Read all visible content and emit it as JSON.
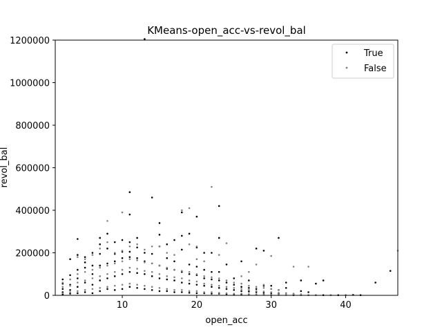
{
  "chart_data": {
    "type": "scatter",
    "title": "KMeans-open_acc-vs-revol_bal",
    "xlabel": "open_acc",
    "ylabel": "revol_bal",
    "xlim": [
      1,
      47
    ],
    "ylim": [
      0,
      1200000
    ],
    "xticks": [
      10,
      20,
      30,
      40
    ],
    "yticks": [
      0,
      200000,
      400000,
      600000,
      800000,
      1000000,
      1200000
    ],
    "grid": false,
    "legend_position": "top-right",
    "series": [
      {
        "name": "True",
        "color": "#000000",
        "points": [
          [
            2,
            5000
          ],
          [
            2,
            15000
          ],
          [
            2,
            30000
          ],
          [
            2,
            55000
          ],
          [
            2,
            75000
          ],
          [
            3,
            8000
          ],
          [
            3,
            25000
          ],
          [
            3,
            50000
          ],
          [
            3,
            95000
          ],
          [
            3,
            170000
          ],
          [
            4,
            10000
          ],
          [
            4,
            40000
          ],
          [
            4,
            80000
          ],
          [
            4,
            120000
          ],
          [
            4,
            190000
          ],
          [
            4,
            265000
          ],
          [
            5,
            15000
          ],
          [
            5,
            60000
          ],
          [
            5,
            130000
          ],
          [
            5,
            155000
          ],
          [
            5,
            180000
          ],
          [
            6,
            10000
          ],
          [
            6,
            50000
          ],
          [
            6,
            100000
          ],
          [
            6,
            140000
          ],
          [
            6,
            200000
          ],
          [
            7,
            20000
          ],
          [
            7,
            70000
          ],
          [
            7,
            140000
          ],
          [
            7,
            195000
          ],
          [
            7,
            240000
          ],
          [
            7,
            270000
          ],
          [
            8,
            30000
          ],
          [
            8,
            80000
          ],
          [
            8,
            150000
          ],
          [
            8,
            220000
          ],
          [
            8,
            290000
          ],
          [
            9,
            25000
          ],
          [
            9,
            90000
          ],
          [
            9,
            160000
          ],
          [
            9,
            195000
          ],
          [
            9,
            250000
          ],
          [
            10,
            30000
          ],
          [
            10,
            100000
          ],
          [
            10,
            175000
          ],
          [
            10,
            205000
          ],
          [
            10,
            260000
          ],
          [
            11,
            40000
          ],
          [
            11,
            110000
          ],
          [
            11,
            180000
          ],
          [
            11,
            205000
          ],
          [
            11,
            250000
          ],
          [
            11,
            380000
          ],
          [
            11,
            485000
          ],
          [
            12,
            35000
          ],
          [
            12,
            105000
          ],
          [
            12,
            175000
          ],
          [
            12,
            225000
          ],
          [
            12,
            270000
          ],
          [
            13,
            30000
          ],
          [
            13,
            100000
          ],
          [
            13,
            160000
          ],
          [
            13,
            200000
          ],
          [
            13,
            1205000
          ],
          [
            14,
            25000
          ],
          [
            14,
            90000
          ],
          [
            14,
            150000
          ],
          [
            14,
            195000
          ],
          [
            14,
            460000
          ],
          [
            15,
            20000
          ],
          [
            15,
            80000
          ],
          [
            15,
            140000
          ],
          [
            15,
            230000
          ],
          [
            15,
            285000
          ],
          [
            15,
            340000
          ],
          [
            16,
            20000
          ],
          [
            16,
            75000
          ],
          [
            16,
            125000
          ],
          [
            16,
            175000
          ],
          [
            16,
            240000
          ],
          [
            17,
            15000
          ],
          [
            17,
            70000
          ],
          [
            17,
            120000
          ],
          [
            17,
            160000
          ],
          [
            17,
            260000
          ],
          [
            18,
            15000
          ],
          [
            18,
            60000
          ],
          [
            18,
            110000
          ],
          [
            18,
            215000
          ],
          [
            18,
            280000
          ],
          [
            18,
            390000
          ],
          [
            19,
            12000
          ],
          [
            19,
            55000
          ],
          [
            19,
            100000
          ],
          [
            19,
            145000
          ],
          [
            19,
            290000
          ],
          [
            20,
            10000
          ],
          [
            20,
            50000
          ],
          [
            20,
            95000
          ],
          [
            20,
            135000
          ],
          [
            20,
            225000
          ],
          [
            20,
            370000
          ],
          [
            21,
            10000
          ],
          [
            21,
            45000
          ],
          [
            21,
            80000
          ],
          [
            21,
            120000
          ],
          [
            21,
            200000
          ],
          [
            22,
            8000
          ],
          [
            22,
            40000
          ],
          [
            22,
            75000
          ],
          [
            22,
            110000
          ],
          [
            22,
            200000
          ],
          [
            23,
            8000
          ],
          [
            23,
            35000
          ],
          [
            23,
            70000
          ],
          [
            23,
            110000
          ],
          [
            23,
            270000
          ],
          [
            23,
            420000
          ],
          [
            24,
            6000
          ],
          [
            24,
            30000
          ],
          [
            24,
            60000
          ],
          [
            24,
            145000
          ],
          [
            25,
            5000
          ],
          [
            25,
            25000
          ],
          [
            25,
            50000
          ],
          [
            25,
            80000
          ],
          [
            26,
            5000
          ],
          [
            26,
            20000
          ],
          [
            26,
            40000
          ],
          [
            26,
            160000
          ],
          [
            27,
            4000
          ],
          [
            27,
            18000
          ],
          [
            27,
            35000
          ],
          [
            27,
            70000
          ],
          [
            28,
            3000
          ],
          [
            28,
            15000
          ],
          [
            28,
            30000
          ],
          [
            28,
            220000
          ],
          [
            29,
            3000
          ],
          [
            29,
            12000
          ],
          [
            29,
            45000
          ],
          [
            29,
            210000
          ],
          [
            30,
            2000
          ],
          [
            30,
            10000
          ],
          [
            30,
            30000
          ],
          [
            30,
            45000
          ],
          [
            31,
            2000
          ],
          [
            31,
            8000
          ],
          [
            31,
            25000
          ],
          [
            31,
            270000
          ],
          [
            32,
            2000
          ],
          [
            32,
            10000
          ],
          [
            32,
            35000
          ],
          [
            32,
            60000
          ],
          [
            33,
            1000
          ],
          [
            33,
            5000
          ],
          [
            34,
            1000
          ],
          [
            34,
            20000
          ],
          [
            34,
            70000
          ],
          [
            35,
            1000
          ],
          [
            35,
            15000
          ],
          [
            36,
            1000
          ],
          [
            36,
            55000
          ],
          [
            37,
            1000
          ],
          [
            37,
            70000
          ],
          [
            38,
            1000
          ],
          [
            39,
            1000
          ],
          [
            40,
            1000
          ],
          [
            41,
            2000
          ],
          [
            42,
            1000
          ],
          [
            44,
            60000
          ],
          [
            46,
            115000
          ]
        ]
      },
      {
        "name": "False",
        "color": "#808080",
        "points": [
          [
            2,
            10000
          ],
          [
            2,
            40000
          ],
          [
            2,
            60000
          ],
          [
            3,
            15000
          ],
          [
            3,
            45000
          ],
          [
            3,
            75000
          ],
          [
            4,
            20000
          ],
          [
            4,
            60000
          ],
          [
            4,
            100000
          ],
          [
            4,
            180000
          ],
          [
            5,
            25000
          ],
          [
            5,
            70000
          ],
          [
            5,
            110000
          ],
          [
            5,
            170000
          ],
          [
            6,
            30000
          ],
          [
            6,
            80000
          ],
          [
            6,
            120000
          ],
          [
            6,
            190000
          ],
          [
            7,
            35000
          ],
          [
            7,
            90000
          ],
          [
            7,
            130000
          ],
          [
            7,
            220000
          ],
          [
            8,
            40000
          ],
          [
            8,
            100000
          ],
          [
            8,
            140000
          ],
          [
            8,
            250000
          ],
          [
            8,
            350000
          ],
          [
            9,
            45000
          ],
          [
            9,
            110000
          ],
          [
            9,
            150000
          ],
          [
            9,
            200000
          ],
          [
            10,
            50000
          ],
          [
            10,
            120000
          ],
          [
            10,
            160000
          ],
          [
            10,
            210000
          ],
          [
            10,
            390000
          ],
          [
            11,
            55000
          ],
          [
            11,
            130000
          ],
          [
            11,
            170000
          ],
          [
            11,
            230000
          ],
          [
            12,
            50000
          ],
          [
            12,
            125000
          ],
          [
            12,
            165000
          ],
          [
            12,
            240000
          ],
          [
            13,
            45000
          ],
          [
            13,
            115000
          ],
          [
            13,
            155000
          ],
          [
            13,
            215000
          ],
          [
            14,
            40000
          ],
          [
            14,
            110000
          ],
          [
            14,
            150000
          ],
          [
            14,
            230000
          ],
          [
            15,
            35000
          ],
          [
            15,
            100000
          ],
          [
            15,
            140000
          ],
          [
            15,
            230000
          ],
          [
            16,
            30000
          ],
          [
            16,
            90000
          ],
          [
            16,
            130000
          ],
          [
            16,
            200000
          ],
          [
            17,
            25000
          ],
          [
            17,
            85000
          ],
          [
            17,
            120000
          ],
          [
            17,
            190000
          ],
          [
            18,
            25000
          ],
          [
            18,
            80000
          ],
          [
            18,
            115000
          ],
          [
            18,
            400000
          ],
          [
            19,
            20000
          ],
          [
            19,
            70000
          ],
          [
            19,
            110000
          ],
          [
            19,
            240000
          ],
          [
            19,
            410000
          ],
          [
            20,
            20000
          ],
          [
            20,
            65000
          ],
          [
            20,
            100000
          ],
          [
            20,
            170000
          ],
          [
            20,
            230000
          ],
          [
            21,
            15000
          ],
          [
            21,
            55000
          ],
          [
            21,
            90000
          ],
          [
            21,
            160000
          ],
          [
            22,
            15000
          ],
          [
            22,
            50000
          ],
          [
            22,
            85000
          ],
          [
            22,
            510000
          ],
          [
            23,
            12000
          ],
          [
            23,
            45000
          ],
          [
            23,
            80000
          ],
          [
            23,
            190000
          ],
          [
            24,
            10000
          ],
          [
            24,
            40000
          ],
          [
            24,
            70000
          ],
          [
            24,
            245000
          ],
          [
            25,
            8000
          ],
          [
            25,
            35000
          ],
          [
            25,
            60000
          ],
          [
            26,
            8000
          ],
          [
            26,
            30000
          ],
          [
            26,
            55000
          ],
          [
            26,
            90000
          ],
          [
            27,
            6000
          ],
          [
            27,
            25000
          ],
          [
            27,
            45000
          ],
          [
            27,
            110000
          ],
          [
            28,
            5000
          ],
          [
            28,
            20000
          ],
          [
            28,
            40000
          ],
          [
            28,
            145000
          ],
          [
            29,
            4000
          ],
          [
            29,
            18000
          ],
          [
            29,
            35000
          ],
          [
            29,
            50000
          ],
          [
            30,
            3000
          ],
          [
            30,
            15000
          ],
          [
            30,
            30000
          ],
          [
            30,
            185000
          ],
          [
            31,
            3000
          ],
          [
            31,
            12000
          ],
          [
            31,
            25000
          ],
          [
            32,
            2000
          ],
          [
            32,
            10000
          ],
          [
            33,
            2000
          ],
          [
            33,
            8000
          ],
          [
            33,
            135000
          ],
          [
            34,
            1000
          ],
          [
            34,
            5000
          ],
          [
            35,
            1000
          ],
          [
            35,
            135000
          ],
          [
            36,
            1000
          ],
          [
            38,
            1000
          ],
          [
            40,
            1000
          ],
          [
            47,
            210000
          ]
        ]
      }
    ]
  }
}
